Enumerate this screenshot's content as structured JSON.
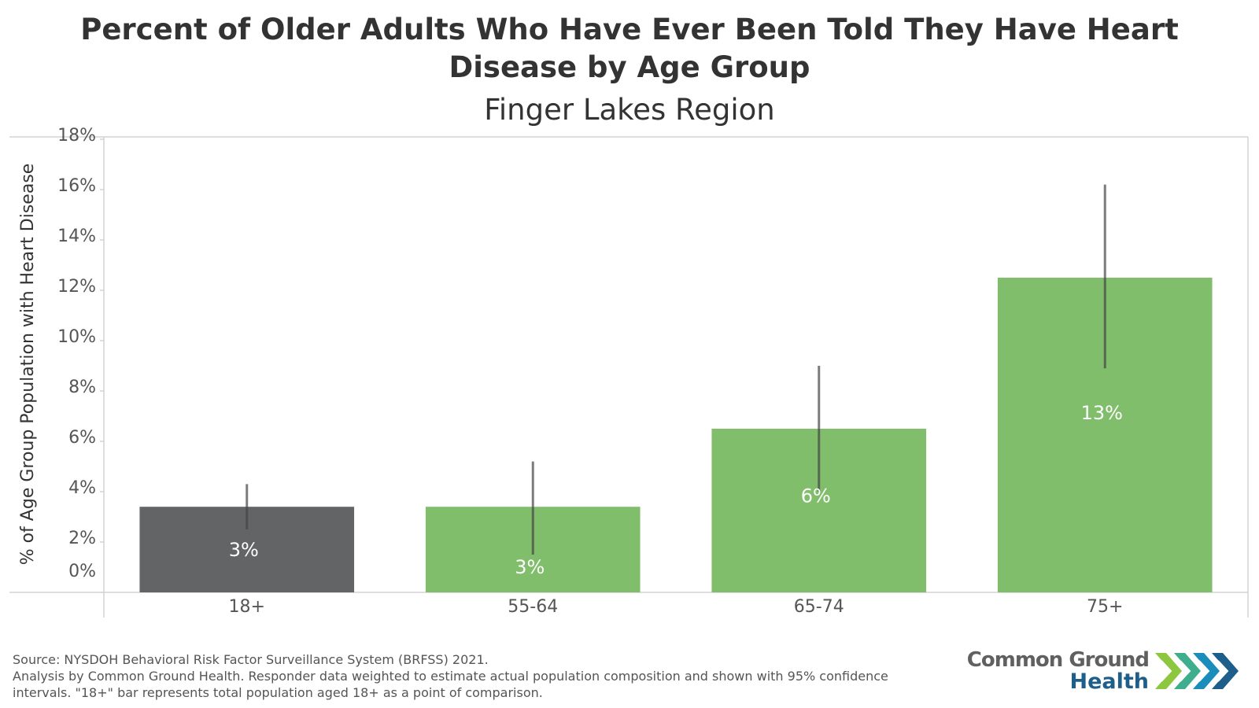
{
  "header": {
    "title": "Percent of Older Adults Who Have Ever Been Told They Have Heart Disease by Age Group",
    "title_line1": "Percent of Older Adults Who Have Ever Been Told They Have Heart",
    "title_line2": "Disease by Age Group",
    "subtitle": "Finger Lakes Region"
  },
  "chart_data": {
    "type": "bar",
    "title": "Percent of Older Adults Who Have Ever Been Told They Have Heart Disease by Age Group",
    "subtitle": "Finger Lakes Region",
    "xlabel": "",
    "ylabel": "% of Age Group Population with Heart Disease",
    "ylim": [
      0,
      18
    ],
    "yticks": [
      0,
      2,
      4,
      6,
      8,
      10,
      12,
      14,
      16,
      18
    ],
    "ytick_labels": [
      "0%",
      "2%",
      "4%",
      "6%",
      "8%",
      "10%",
      "12%",
      "14%",
      "16%",
      "18%"
    ],
    "grid": false,
    "categories": [
      "18+",
      "55-64",
      "65-74",
      "75+"
    ],
    "values": [
      3.4,
      3.4,
      6.5,
      12.5
    ],
    "data_labels": [
      "3%",
      "3%",
      "6%",
      "13%"
    ],
    "ci_lower": [
      2.5,
      1.5,
      4.0,
      8.9
    ],
    "ci_upper": [
      4.3,
      5.2,
      9.0,
      16.2
    ],
    "bar_colors": [
      "#636466",
      "#80be6b",
      "#80be6b",
      "#80be6b"
    ],
    "error_bar_color": "#555555",
    "error_bars": "95% confidence intervals"
  },
  "footer": {
    "source_line1": "Source: NYSDOH Behavioral Risk Factor Surveillance System (BRFSS) 2021.",
    "source_line2": "Analysis by Common Ground Health. Responder data weighted to estimate actual population composition and shown with 95% confidence",
    "source_line3": "intervals. \"18+\" bar represents total population aged 18+ as a point of comparison."
  },
  "logo": {
    "line1": "Common Ground",
    "line2": "Health",
    "colors": [
      "#8dc63f",
      "#3fae8c",
      "#1b8dbb",
      "#1d5f8a"
    ]
  }
}
